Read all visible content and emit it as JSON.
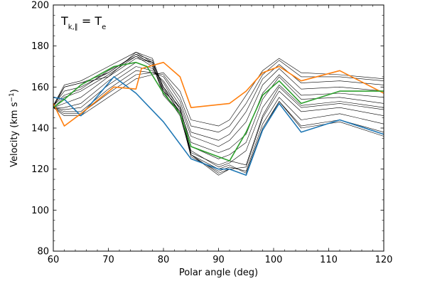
{
  "chart_data": {
    "type": "line",
    "xlabel": "Polar angle (deg)",
    "ylabel_main": "Velocity (km s",
    "ylabel_sup": "−1",
    "ylabel_close": ")",
    "annotation": {
      "main": "T",
      "sub": "k,∥",
      "rest": " = T",
      "sub2": "e"
    },
    "xlim": [
      60,
      120
    ],
    "ylim": [
      80,
      200
    ],
    "xticks_major": [
      60,
      70,
      80,
      90,
      100,
      110,
      120
    ],
    "xticks_major_labels": [
      "60",
      "70",
      "80",
      "90",
      "100",
      "110",
      "120"
    ],
    "yticks_major": [
      80,
      100,
      120,
      140,
      160,
      180,
      200
    ],
    "yticks_major_labels": [
      "80",
      "100",
      "120",
      "140",
      "160",
      "180",
      "200"
    ],
    "grid": false,
    "series": [
      {
        "color": "#000000",
        "width": 0.6,
        "x": [
          60,
          62,
          65,
          70,
          75,
          78,
          80,
          83,
          85,
          90,
          92,
          95,
          98,
          101,
          105,
          112,
          120
        ],
        "y": [
          151,
          160,
          162,
          165,
          177,
          172,
          157,
          148,
          127,
          120,
          122,
          118,
          140,
          153,
          141,
          144,
          138
        ]
      },
      {
        "color": "#000000",
        "width": 0.6,
        "x": [
          60,
          62,
          65,
          70,
          75,
          78,
          80,
          83,
          85,
          90,
          92,
          95,
          98,
          101,
          105,
          112,
          120
        ],
        "y": [
          151,
          158,
          160,
          167,
          176,
          171,
          156,
          147,
          126,
          119,
          121,
          119,
          142,
          155,
          144,
          147,
          142
        ]
      },
      {
        "color": "#000000",
        "width": 0.6,
        "x": [
          60,
          62,
          65,
          70,
          75,
          78,
          80,
          83,
          85,
          90,
          92,
          95,
          98,
          101,
          105,
          112,
          120
        ],
        "y": [
          150,
          155,
          158,
          166,
          175,
          170,
          158,
          146,
          127,
          118,
          120,
          121,
          145,
          158,
          148,
          150,
          146
        ]
      },
      {
        "color": "#000000",
        "width": 0.6,
        "x": [
          60,
          62,
          65,
          70,
          75,
          78,
          80,
          83,
          85,
          90,
          92,
          95,
          98,
          101,
          105,
          112,
          120
        ],
        "y": [
          150,
          152,
          155,
          165,
          174,
          172,
          160,
          147,
          129,
          121,
          123,
          129,
          150,
          161,
          151,
          153,
          150
        ]
      },
      {
        "color": "#000000",
        "width": 0.6,
        "x": [
          60,
          62,
          65,
          70,
          75,
          78,
          80,
          83,
          85,
          90,
          92,
          95,
          98,
          101,
          105,
          112,
          120
        ],
        "y": [
          150,
          150,
          152,
          163,
          172,
          169,
          162,
          149,
          133,
          128,
          130,
          137,
          157,
          166,
          156,
          157,
          155
        ]
      },
      {
        "color": "#000000",
        "width": 0.6,
        "x": [
          60,
          62,
          65,
          70,
          75,
          78,
          80,
          83,
          85,
          90,
          92,
          95,
          98,
          101,
          105,
          112,
          120
        ],
        "y": [
          150,
          149,
          150,
          161,
          170,
          168,
          163,
          151,
          136,
          131,
          134,
          143,
          161,
          169,
          159,
          160,
          158
        ]
      },
      {
        "color": "#000000",
        "width": 0.6,
        "x": [
          60,
          62,
          65,
          70,
          75,
          78,
          80,
          83,
          85,
          90,
          92,
          95,
          98,
          101,
          105,
          112,
          120
        ],
        "y": [
          150,
          148,
          148,
          159,
          168,
          167,
          165,
          153,
          138,
          134,
          137,
          148,
          164,
          171,
          162,
          163,
          161
        ]
      },
      {
        "color": "#000000",
        "width": 0.6,
        "x": [
          60,
          62,
          65,
          70,
          75,
          78,
          80,
          83,
          85,
          90,
          92,
          95,
          98,
          101,
          105,
          112,
          120
        ],
        "y": [
          150,
          147,
          147,
          157,
          166,
          167,
          166,
          155,
          141,
          138,
          141,
          152,
          166,
          173,
          165,
          165,
          163
        ]
      },
      {
        "color": "#000000",
        "width": 0.6,
        "x": [
          60,
          62,
          65,
          70,
          75,
          78,
          80,
          83,
          85,
          90,
          92,
          95,
          98,
          101,
          105,
          112,
          120
        ],
        "y": [
          150,
          146,
          146,
          155,
          164,
          166,
          167,
          158,
          144,
          141,
          144,
          156,
          168,
          174,
          167,
          166,
          164
        ]
      },
      {
        "color": "#000000",
        "width": 0.6,
        "x": [
          60,
          62,
          65,
          70,
          75,
          78,
          80,
          83,
          85,
          90,
          92,
          95,
          98,
          101,
          105,
          112,
          120
        ],
        "y": [
          150,
          160,
          162,
          167,
          176,
          173,
          158,
          150,
          127,
          117,
          120,
          117,
          139,
          153,
          140,
          143,
          136
        ]
      },
      {
        "color": "#000000",
        "width": 0.6,
        "x": [
          60,
          62,
          65,
          70,
          75,
          78,
          80,
          83,
          85,
          90,
          92,
          95,
          98,
          101,
          105,
          112,
          120
        ],
        "y": [
          151,
          161,
          163,
          170,
          177,
          174,
          159,
          148,
          128,
          122,
          124,
          122,
          146,
          160,
          150,
          152,
          149
        ]
      },
      {
        "color": "#000000",
        "width": 0.6,
        "x": [
          60,
          62,
          65,
          70,
          75,
          78,
          80,
          83,
          85,
          90,
          92,
          95,
          98,
          101,
          105,
          112,
          120
        ],
        "y": [
          151,
          156,
          159,
          168,
          175,
          172,
          160,
          150,
          131,
          125,
          127,
          133,
          154,
          165,
          154,
          155,
          152
        ]
      },
      {
        "name": "blue",
        "color": "#1f77b4",
        "width": 1.6,
        "x": [
          60,
          62,
          65,
          71,
          75,
          80,
          85,
          90,
          92,
          95,
          98,
          101,
          105,
          112,
          120
        ],
        "y": [
          155,
          154,
          146,
          165,
          157,
          143,
          125,
          120,
          120,
          117,
          139,
          152,
          138,
          144,
          137
        ]
      },
      {
        "name": "orange",
        "color": "#ff7f0e",
        "width": 1.6,
        "x": [
          60,
          62,
          65,
          71,
          75,
          76,
          80,
          83,
          85,
          92,
          95,
          98,
          101,
          105,
          112,
          120
        ],
        "y": [
          152,
          141,
          147,
          160,
          159,
          169,
          172,
          165,
          150,
          152,
          158,
          167,
          170,
          163,
          168,
          157
        ]
      },
      {
        "name": "green",
        "color": "#2ca02c",
        "width": 1.6,
        "x": [
          60,
          62,
          65,
          71,
          75,
          77,
          80,
          83,
          85,
          92,
          95,
          98,
          101,
          105,
          112,
          120
        ],
        "y": [
          150,
          154,
          161,
          170,
          172,
          170,
          157,
          147,
          131,
          124,
          138,
          156,
          163,
          152,
          158,
          158
        ]
      }
    ]
  }
}
